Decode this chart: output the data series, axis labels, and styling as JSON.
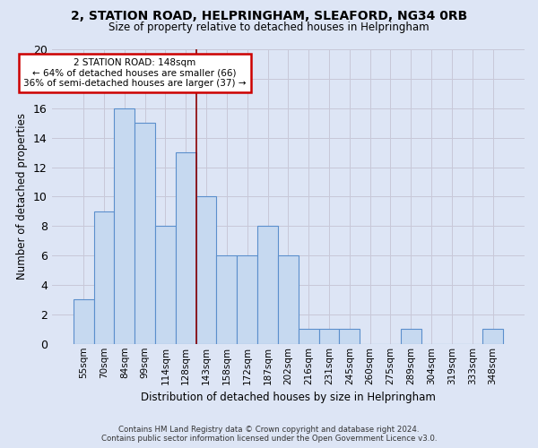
{
  "title_line1": "2, STATION ROAD, HELPRINGHAM, SLEAFORD, NG34 0RB",
  "title_line2": "Size of property relative to detached houses in Helpringham",
  "xlabel": "Distribution of detached houses by size in Helpringham",
  "ylabel": "Number of detached properties",
  "bar_labels": [
    "55sqm",
    "70sqm",
    "84sqm",
    "99sqm",
    "114sqm",
    "128sqm",
    "143sqm",
    "158sqm",
    "172sqm",
    "187sqm",
    "202sqm",
    "216sqm",
    "231sqm",
    "245sqm",
    "260sqm",
    "275sqm",
    "289sqm",
    "304sqm",
    "319sqm",
    "333sqm",
    "348sqm"
  ],
  "bar_heights": [
    3,
    9,
    16,
    15,
    8,
    13,
    10,
    6,
    6,
    8,
    6,
    1,
    1,
    1,
    0,
    0,
    1,
    0,
    0,
    0,
    1
  ],
  "bar_color": "#c6d9f0",
  "bar_edge_color": "#5b8fcc",
  "vline_color": "#8b0000",
  "vline_idx": 6,
  "annotation_text": "2 STATION ROAD: 148sqm\n← 64% of detached houses are smaller (66)\n36% of semi-detached houses are larger (37) →",
  "annotation_box_facecolor": "#ffffff",
  "annotation_box_edgecolor": "#cc0000",
  "ylim": [
    0,
    20
  ],
  "yticks": [
    0,
    2,
    4,
    6,
    8,
    10,
    12,
    14,
    16,
    18,
    20
  ],
  "grid_color": "#c8c8d8",
  "plot_bg_color": "#dde5f5",
  "fig_bg_color": "#dde5f5",
  "footer_line1": "Contains HM Land Registry data © Crown copyright and database right 2024.",
  "footer_line2": "Contains public sector information licensed under the Open Government Licence v3.0."
}
